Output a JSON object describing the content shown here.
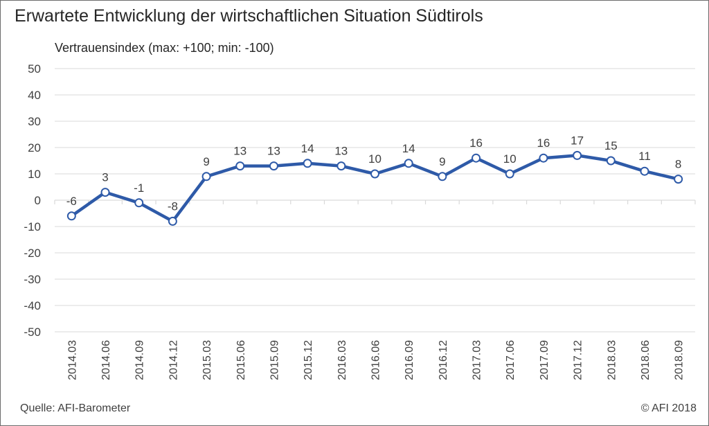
{
  "title": "Erwartete Entwicklung der wirtschaftlichen Situation Südtirols",
  "source": "Quelle: AFI-Barometer",
  "copyright": "© AFI 2018",
  "chart_data": {
    "type": "line",
    "title": "Erwartete Entwicklung der wirtschaftlichen Situation Südtirols",
    "ylabel": "Vertrauensindex (max: +100; min: -100)",
    "xlabel": "",
    "ylim": [
      -50,
      50
    ],
    "yticks": [
      50,
      40,
      30,
      20,
      10,
      0,
      -10,
      -20,
      -30,
      -40,
      -50
    ],
    "grid": true,
    "categories": [
      "2014.03",
      "2014.06",
      "2014.09",
      "2014.12",
      "2015.03",
      "2015.06",
      "2015.09",
      "2015.12",
      "2016.03",
      "2016.06",
      "2016.09",
      "2016.12",
      "2017.03",
      "2017.06",
      "2017.09",
      "2017.12",
      "2018.03",
      "2018.06",
      "2018.09"
    ],
    "series": [
      {
        "values": [
          -6,
          3,
          -1,
          -8,
          9,
          13,
          13,
          14,
          13,
          10,
          14,
          9,
          16,
          10,
          16,
          17,
          15,
          11,
          8
        ],
        "color": "#2e5aa8"
      }
    ]
  }
}
